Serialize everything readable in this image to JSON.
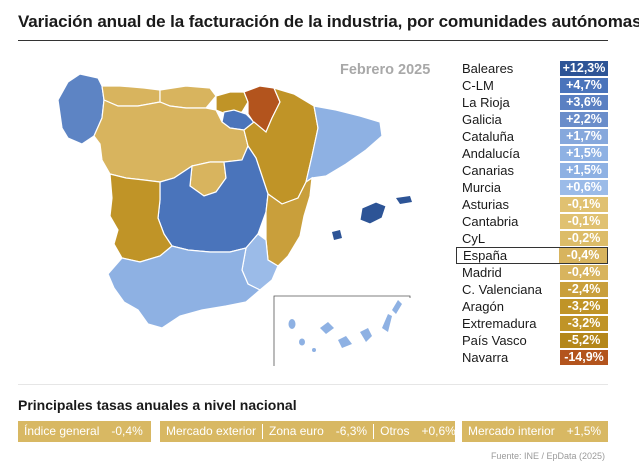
{
  "title": "Variación anual de la facturación de la industria, por comunidades autónomas",
  "period": "Febrero 2025",
  "colors": {
    "strong_positive": "#3d67ab",
    "positive": "#5d84c4",
    "light_positive": "#8eb1e3",
    "light_negative": "#d8b45e",
    "negative": "#c09427",
    "strong_negative": "#b3541d"
  },
  "regions": [
    {
      "name": "Baleares",
      "value": "+12,3%",
      "color": "#2d5496"
    },
    {
      "name": "C-LM",
      "value": "+4,7%",
      "color": "#4a74bb"
    },
    {
      "name": "La Rioja",
      "value": "+3,6%",
      "color": "#5a80c2"
    },
    {
      "name": "Galicia",
      "value": "+2,2%",
      "color": "#6a8dca"
    },
    {
      "name": "Cataluña",
      "value": "+1,7%",
      "color": "#86a8dc"
    },
    {
      "name": "Andalucía",
      "value": "+1,5%",
      "color": "#8eb1e3"
    },
    {
      "name": "Canarias",
      "value": "+1,5%",
      "color": "#8eb1e3"
    },
    {
      "name": "Murcia",
      "value": "+0,6%",
      "color": "#9bbbe8"
    },
    {
      "name": "Asturias",
      "value": "-0,1%",
      "color": "#e0c171"
    },
    {
      "name": "Cantabria",
      "value": "-0,1%",
      "color": "#e0c171"
    },
    {
      "name": "CyL",
      "value": "-0,2%",
      "color": "#dcbc68"
    },
    {
      "name": "España",
      "value": "-0,4%",
      "color": "#d8b45e",
      "highlight": true
    },
    {
      "name": "Madrid",
      "value": "-0,4%",
      "color": "#d8b45e"
    },
    {
      "name": "C. Valenciana",
      "value": "-2,4%",
      "color": "#c99f3b"
    },
    {
      "name": "Aragón",
      "value": "-3,2%",
      "color": "#c09427"
    },
    {
      "name": "Extremadura",
      "value": "-3,2%",
      "color": "#c09427"
    },
    {
      "name": "País Vasco",
      "value": "-5,2%",
      "color": "#b4871a"
    },
    {
      "name": "Navarra",
      "value": "-14,9%",
      "color": "#b3541d"
    }
  ],
  "national": {
    "heading": "Principales tasas anuales a nivel nacional",
    "indice_general": {
      "label": "Índice general",
      "value": "-0,4%"
    },
    "mercado_exterior": {
      "label": "Mercado exterior"
    },
    "zona_euro": {
      "label": "Zona euro",
      "value": "-6,3%"
    },
    "otros": {
      "label": "Otros",
      "value": "+0,6%"
    },
    "mercado_interior": {
      "label": "Mercado interior",
      "value": "+1,5%"
    }
  },
  "source": "Fuente: INE / EpData (2025)"
}
